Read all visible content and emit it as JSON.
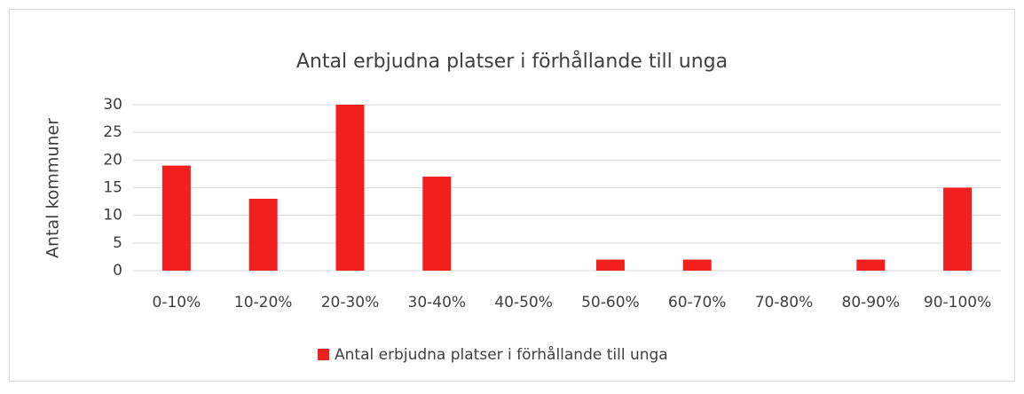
{
  "chart_data": {
    "type": "bar",
    "title": "Antal erbjudna platser i förhållande till unga",
    "y_label": "Antal kommuner",
    "categories": [
      "0-10%",
      "10-20%",
      "20-30%",
      "30-40%",
      "40-50%",
      "50-60%",
      "60-70%",
      "70-80%",
      "80-90%",
      "90-100%"
    ],
    "series": [
      {
        "name": "Antal erbjudna platser i förhållande till unga",
        "color": "#f21f1f",
        "values": [
          19,
          13,
          30,
          17,
          0,
          2,
          2,
          0,
          2,
          15
        ]
      }
    ],
    "ylim": [
      0,
      30
    ],
    "yticks": [
      0,
      5,
      10,
      15,
      20,
      25,
      30
    ],
    "grid": true,
    "legend": "bottom"
  }
}
